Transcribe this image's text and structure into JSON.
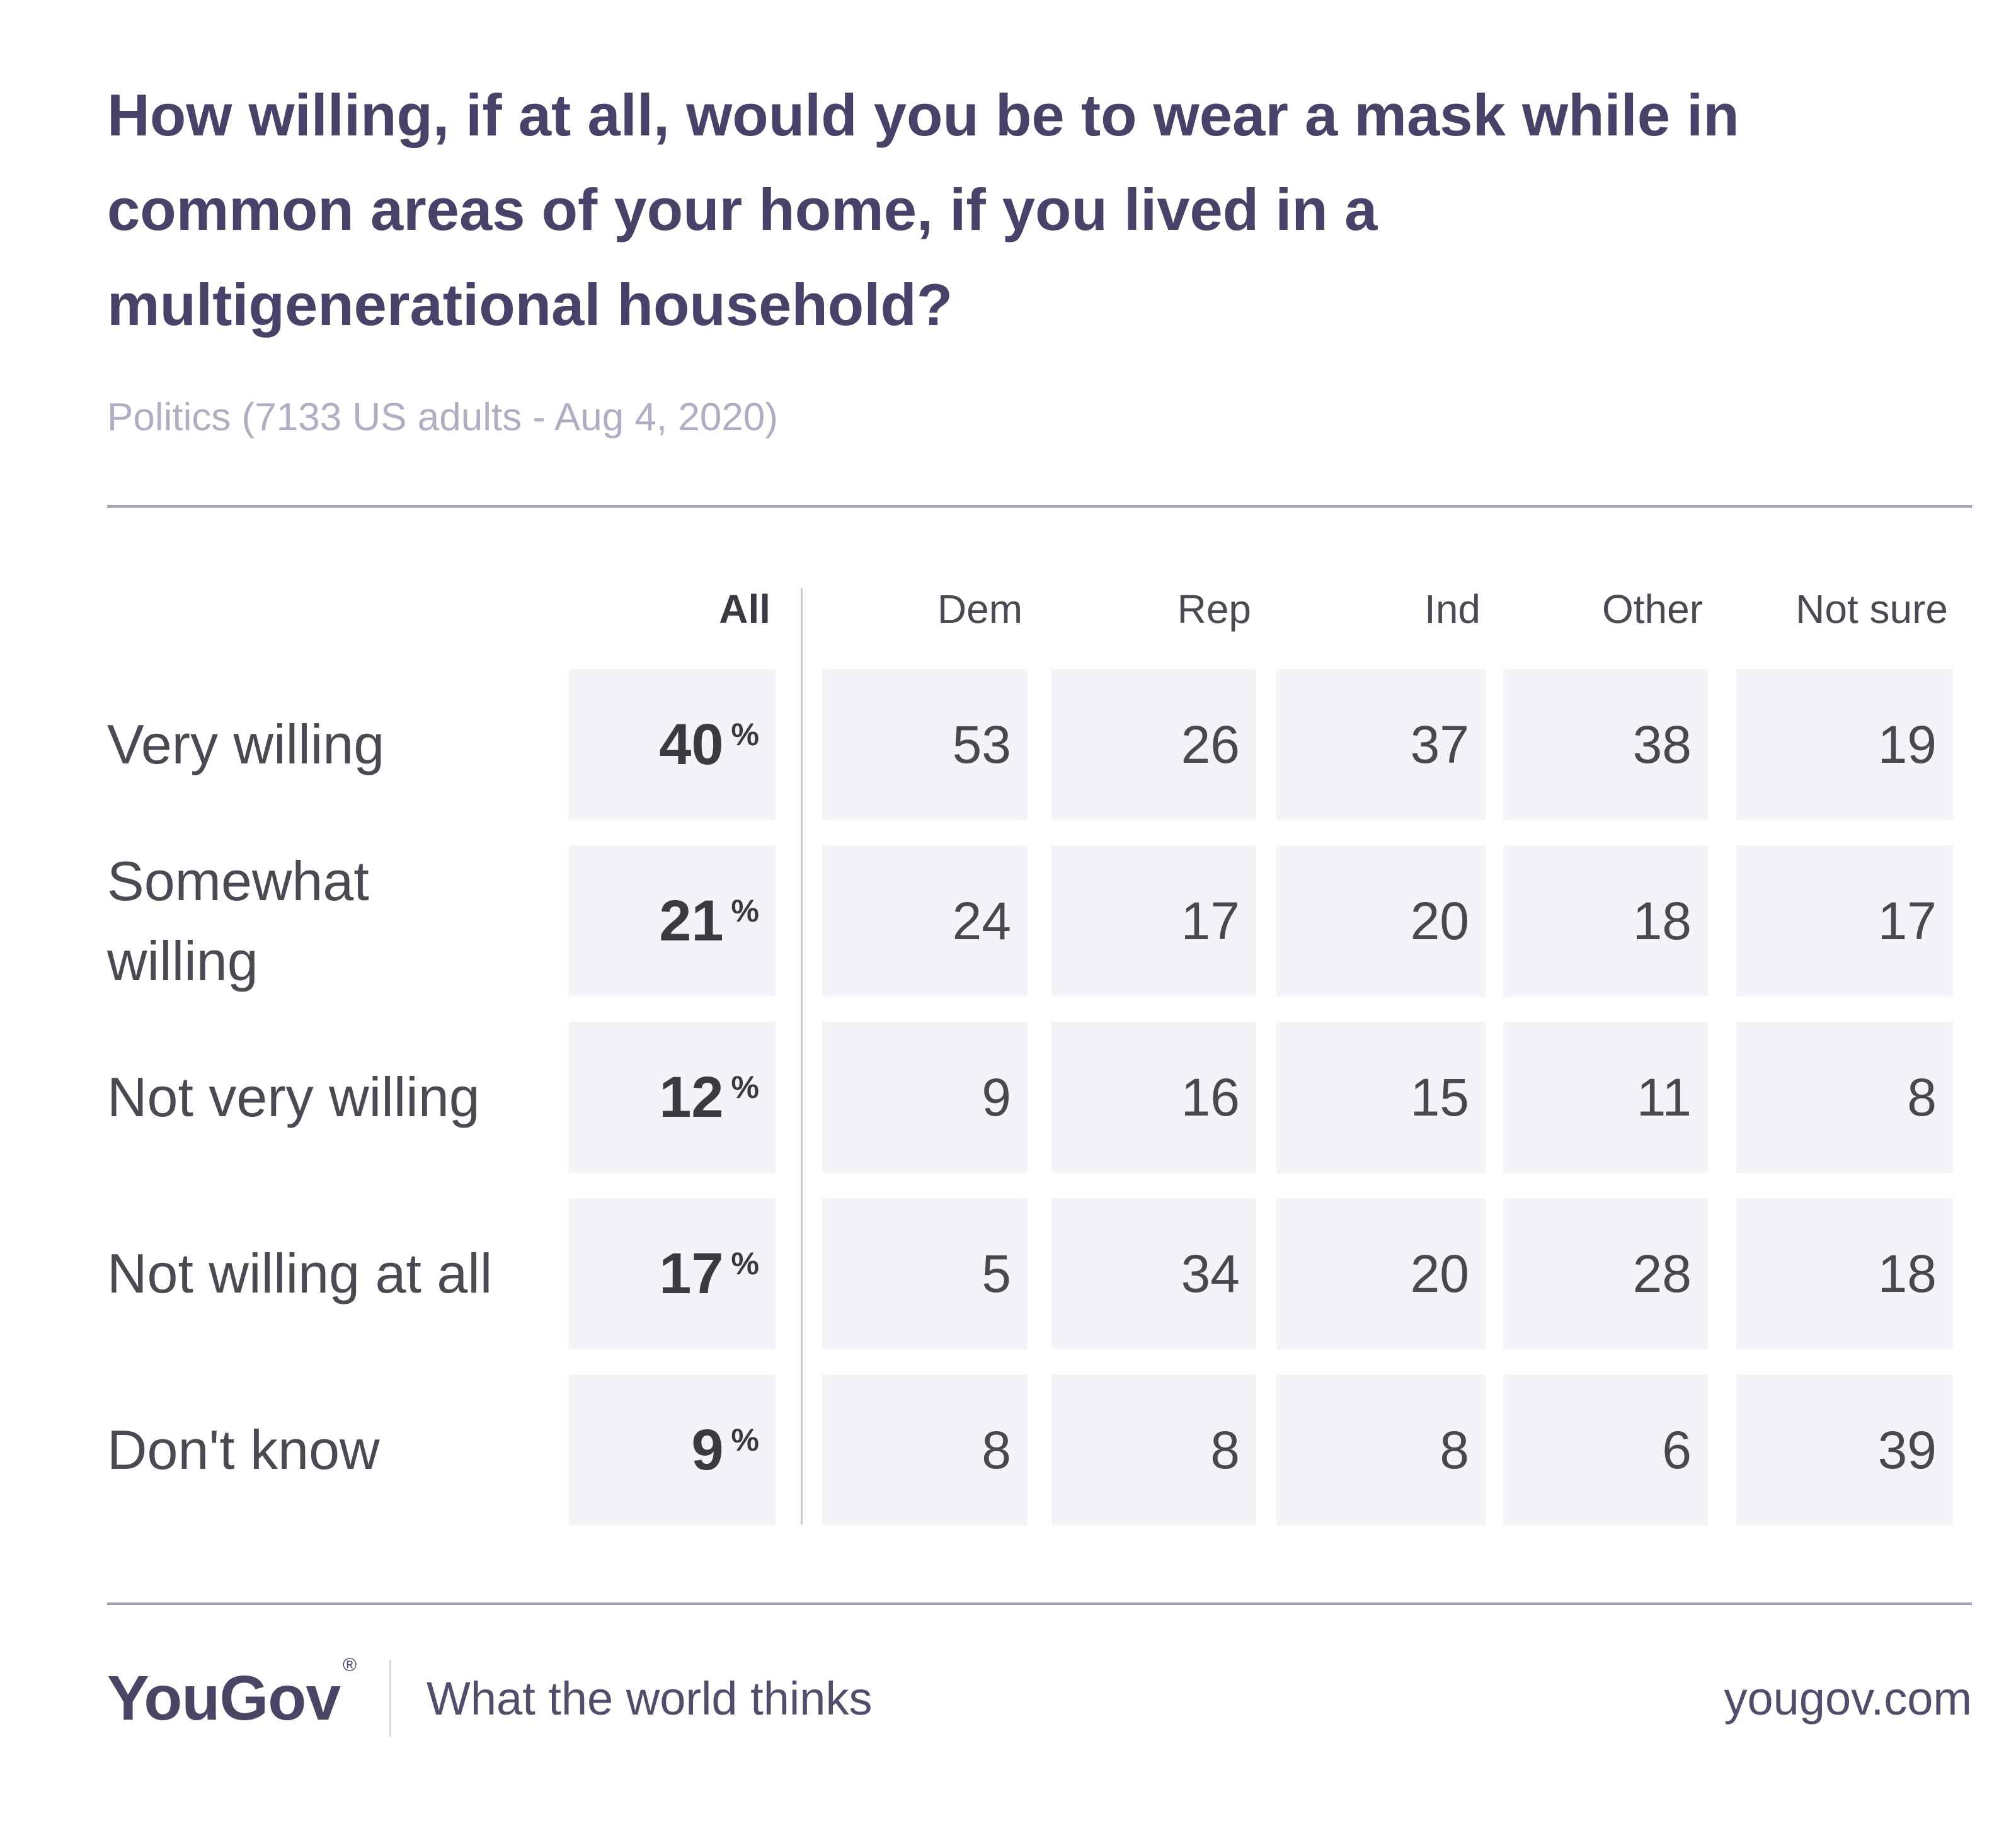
{
  "header": {
    "title_lines": [
      "How willing, if at all, would you be to wear a mask while in",
      "common areas of your home, if you lived in a",
      "multigenerational household?"
    ],
    "subtitle": "Politics (7133 US adults - Aug 4, 2020)"
  },
  "table": {
    "columns": [
      "All",
      "Dem",
      "Rep",
      "Ind",
      "Other",
      "Not sure"
    ],
    "percent_sign": "%",
    "rows": [
      {
        "label": "Very willing",
        "values": [
          "40",
          "53",
          "26",
          "37",
          "38",
          "19"
        ]
      },
      {
        "label": "Somewhat willing",
        "values": [
          "21",
          "24",
          "17",
          "20",
          "18",
          "17"
        ]
      },
      {
        "label": "Not very willing",
        "values": [
          "12",
          "9",
          "16",
          "15",
          "11",
          "8"
        ]
      },
      {
        "label": "Not willing at all",
        "values": [
          "17",
          "5",
          "34",
          "20",
          "28",
          "18"
        ]
      },
      {
        "label": "Don't know",
        "values": [
          "9",
          "8",
          "8",
          "8",
          "6",
          "39"
        ]
      }
    ]
  },
  "footer": {
    "logo": "YouGov",
    "registered": "®",
    "tagline": "What the world thinks",
    "url": "yougov.com"
  },
  "colors": {
    "title": "#4a4168",
    "subtitle": "#b3adc3",
    "divider": "#a8a2b6",
    "cell_background": "#f4f3f8",
    "number_text": "#49474f",
    "all_column_text": "#3b3942",
    "footer_brand": "#4a4465"
  },
  "chart_data": {
    "type": "table",
    "title": "How willing, if at all, would you be to wear a mask while in common areas of your home, if you lived in a multigenerational household?",
    "subtitle": "Politics (7133 US adults - Aug 4, 2020)",
    "categories": [
      "Very willing",
      "Somewhat willing",
      "Not very willing",
      "Not willing at all",
      "Don't know"
    ],
    "columns": [
      "All",
      "Dem",
      "Rep",
      "Ind",
      "Other",
      "Not sure"
    ],
    "unit": "%",
    "series": [
      {
        "name": "All",
        "values": [
          40,
          21,
          12,
          17,
          9
        ]
      },
      {
        "name": "Dem",
        "values": [
          53,
          24,
          9,
          5,
          8
        ]
      },
      {
        "name": "Rep",
        "values": [
          26,
          17,
          16,
          34,
          8
        ]
      },
      {
        "name": "Ind",
        "values": [
          37,
          20,
          15,
          20,
          8
        ]
      },
      {
        "name": "Other",
        "values": [
          38,
          18,
          11,
          28,
          6
        ]
      },
      {
        "name": "Not sure",
        "values": [
          19,
          17,
          8,
          18,
          39
        ]
      }
    ]
  }
}
